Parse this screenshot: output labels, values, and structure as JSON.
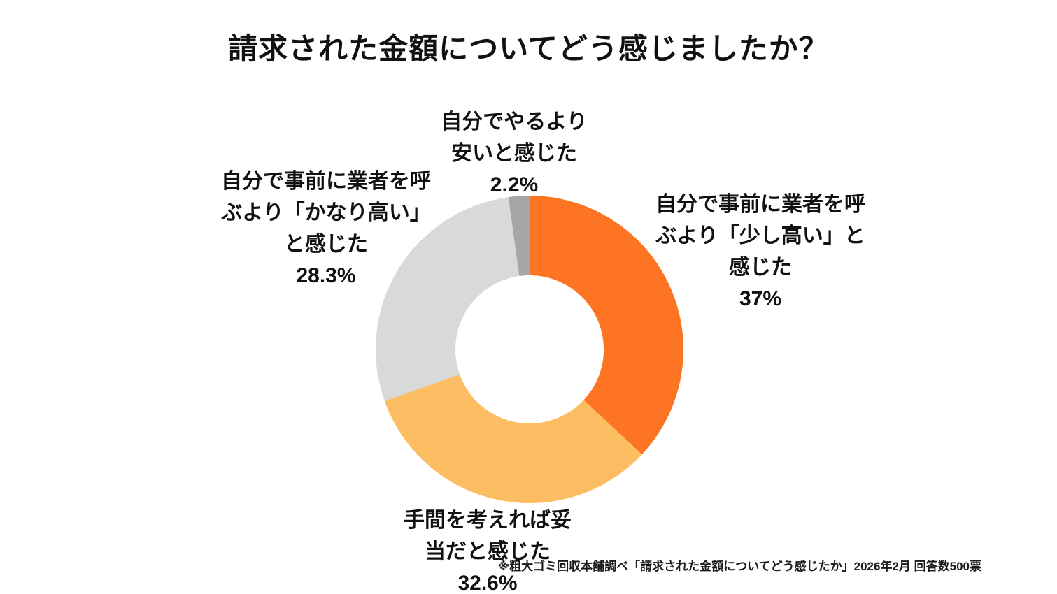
{
  "title": "請求された金額についてどう感じましたか？",
  "source_note": "※粗大ゴミ回収本舗調べ「請求された金額についてどう感じたか」2026年2月 回答数500票",
  "chart_data": {
    "type": "pie",
    "subtype": "donut",
    "title": "請求された金額についてどう感じましたか？",
    "start_angle_deg": 0,
    "direction": "clockwise",
    "hole_ratio": 0.48,
    "legend_position": "none",
    "background_color": "#ffffff",
    "segments": [
      {
        "label": "自分で事前に業者を呼ぶより「少し高い」と感じた",
        "value": 37,
        "value_label": "37%",
        "color": "#fd7522"
      },
      {
        "label": "手間を考えれば妥当だと感じた",
        "value": 32.6,
        "value_label": "32.6%",
        "color": "#fdbd62"
      },
      {
        "label": "自分で事前に業者を呼ぶより「かなり高い」と感じた",
        "value": 28.3,
        "value_label": "28.3%",
        "color": "#d9d9d9"
      },
      {
        "label": "自分でやるより安いと感じた",
        "value": 2.2,
        "value_label": "2.2%",
        "color": "#a6a6a6"
      }
    ],
    "callouts": {
      "right": {
        "text": "自分で事前に業者を呼\nぶより「少し高い」と\n感じた\n37%"
      },
      "bottom": {
        "text": "手間を考えれば妥\n当だと感じた\n32.6%"
      },
      "left": {
        "text": "自分で事前に業者を呼\nぶより「かなり高い」\nと感じた\n28.3%"
      },
      "top": {
        "text": "自分でやるより\n安いと感じた\n2.2%"
      }
    }
  }
}
